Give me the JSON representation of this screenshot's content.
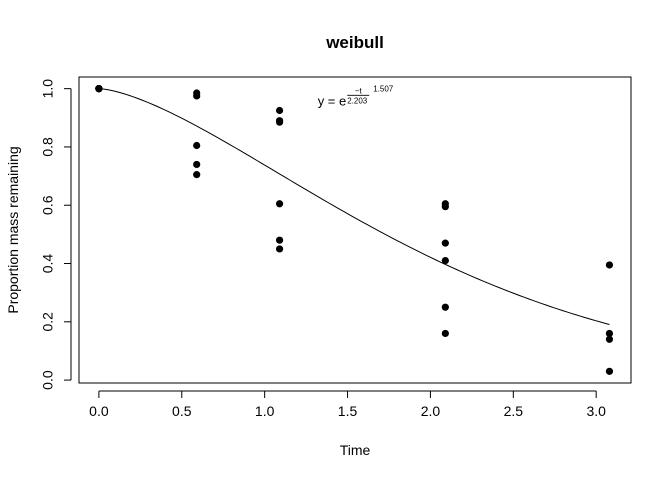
{
  "chart_data": {
    "type": "scatter",
    "title": "weibull",
    "xlabel": "Time",
    "ylabel": "Proportion mass remaining",
    "xlim": [
      -0.12,
      3.21
    ],
    "ylim": [
      -0.01,
      1.04
    ],
    "xticks": [
      "0.0",
      "0.5",
      "1.0",
      "1.5",
      "2.0",
      "2.5",
      "3.0"
    ],
    "xtick_values": [
      0,
      0.5,
      1.0,
      1.5,
      2.0,
      2.5,
      3.0
    ],
    "yticks": [
      "0.0",
      "0.2",
      "0.4",
      "0.6",
      "0.8",
      "1.0"
    ],
    "ytick_values": [
      0,
      0.2,
      0.4,
      0.6,
      0.8,
      1.0
    ],
    "points": [
      {
        "x": 0.0,
        "y": 1.0
      },
      {
        "x": 0.0,
        "y": 1.0
      },
      {
        "x": 0.0,
        "y": 1.0
      },
      {
        "x": 0.0,
        "y": 1.0
      },
      {
        "x": 0.0,
        "y": 1.0
      },
      {
        "x": 0.0,
        "y": 1.0
      },
      {
        "x": 0.59,
        "y": 0.985
      },
      {
        "x": 0.59,
        "y": 0.975
      },
      {
        "x": 0.59,
        "y": 0.805
      },
      {
        "x": 0.59,
        "y": 0.74
      },
      {
        "x": 0.59,
        "y": 0.705
      },
      {
        "x": 1.09,
        "y": 0.925
      },
      {
        "x": 1.09,
        "y": 0.89
      },
      {
        "x": 1.09,
        "y": 0.885
      },
      {
        "x": 1.09,
        "y": 0.605
      },
      {
        "x": 1.09,
        "y": 0.48
      },
      {
        "x": 1.09,
        "y": 0.45
      },
      {
        "x": 2.09,
        "y": 0.605
      },
      {
        "x": 2.09,
        "y": 0.595
      },
      {
        "x": 2.09,
        "y": 0.47
      },
      {
        "x": 2.09,
        "y": 0.41
      },
      {
        "x": 2.09,
        "y": 0.25
      },
      {
        "x": 2.09,
        "y": 0.16
      },
      {
        "x": 3.08,
        "y": 0.395
      },
      {
        "x": 3.08,
        "y": 0.16
      },
      {
        "x": 3.08,
        "y": 0.14
      },
      {
        "x": 3.08,
        "y": 0.03
      }
    ],
    "fit_curve": {
      "formula": "y = exp(-(t/2.203)^1.507)",
      "scale": 2.203,
      "shape": 1.507,
      "x_range": [
        0.0,
        3.08
      ]
    },
    "annotation": {
      "lhs": "y = e",
      "exponent_numerator": "−t",
      "exponent_denominator": "2.203",
      "exponent_power": "1.507",
      "x": 1.32,
      "y": 0.96
    }
  }
}
